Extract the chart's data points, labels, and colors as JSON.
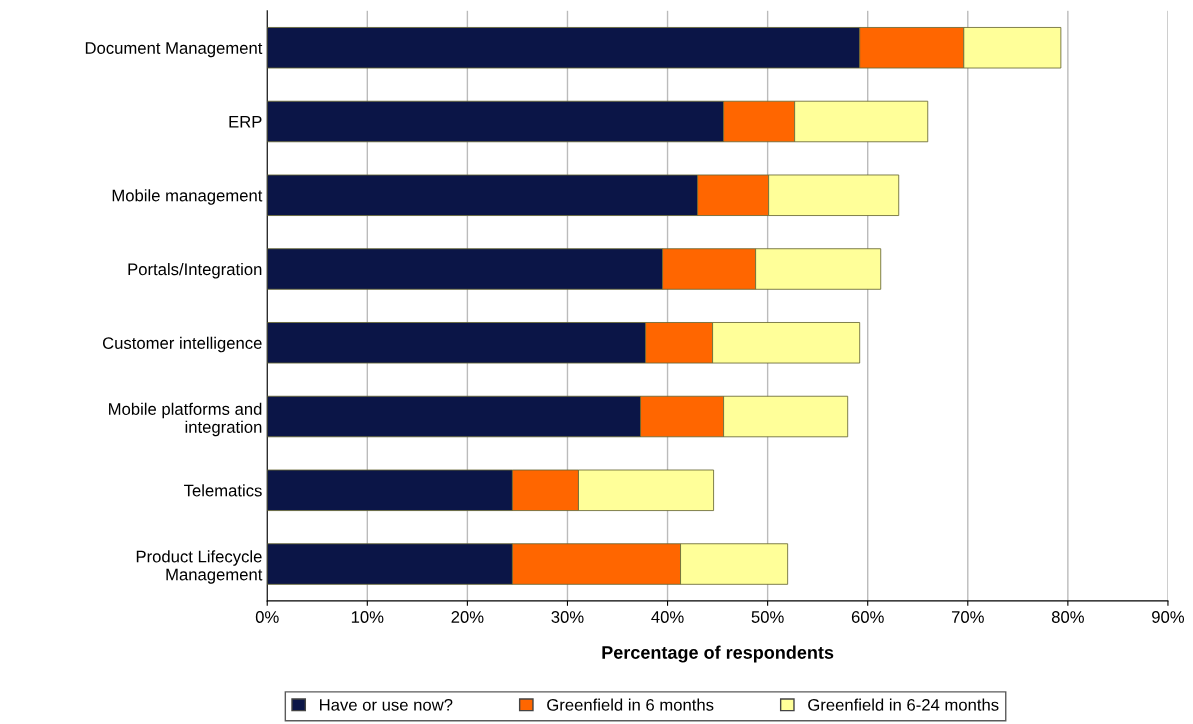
{
  "chart_data": {
    "type": "bar",
    "orientation": "horizontal",
    "stacked": true,
    "categories": [
      "Document Management",
      "ERP",
      "Mobile management",
      "Portals/Integration",
      "Customer intelligence",
      "Mobile platforms and\nintegration",
      "Telematics",
      "Product Lifecycle\nManagement"
    ],
    "series": [
      {
        "name": "Have or use now?",
        "color": "#0b1547",
        "values": [
          59.2,
          45.6,
          43.0,
          39.5,
          37.8,
          37.3,
          24.5,
          24.5
        ]
      },
      {
        "name": "Greenfield in 6 months",
        "color": "#ff6600",
        "values": [
          10.4,
          7.1,
          7.1,
          9.3,
          6.7,
          8.3,
          6.6,
          16.8
        ]
      },
      {
        "name": "Greenfield in 6-24 months",
        "color": "#ffff99",
        "values": [
          9.7,
          13.3,
          13.0,
          12.5,
          14.7,
          12.4,
          13.5,
          10.7
        ]
      }
    ],
    "xlabel": "Percentage of respondents",
    "xlim": [
      0,
      90
    ],
    "xticks": [
      {
        "value": 0,
        "label": "0%"
      },
      {
        "value": 10,
        "label": "10%"
      },
      {
        "value": 20,
        "label": "20%"
      },
      {
        "value": 30,
        "label": "30%"
      },
      {
        "value": 40,
        "label": "40%"
      },
      {
        "value": 50,
        "label": "50%"
      },
      {
        "value": 60,
        "label": "60%"
      },
      {
        "value": 70,
        "label": "70%"
      },
      {
        "value": 80,
        "label": "80%"
      },
      {
        "value": 90,
        "label": "90%"
      }
    ],
    "grid": "x",
    "legend": "bottom"
  }
}
